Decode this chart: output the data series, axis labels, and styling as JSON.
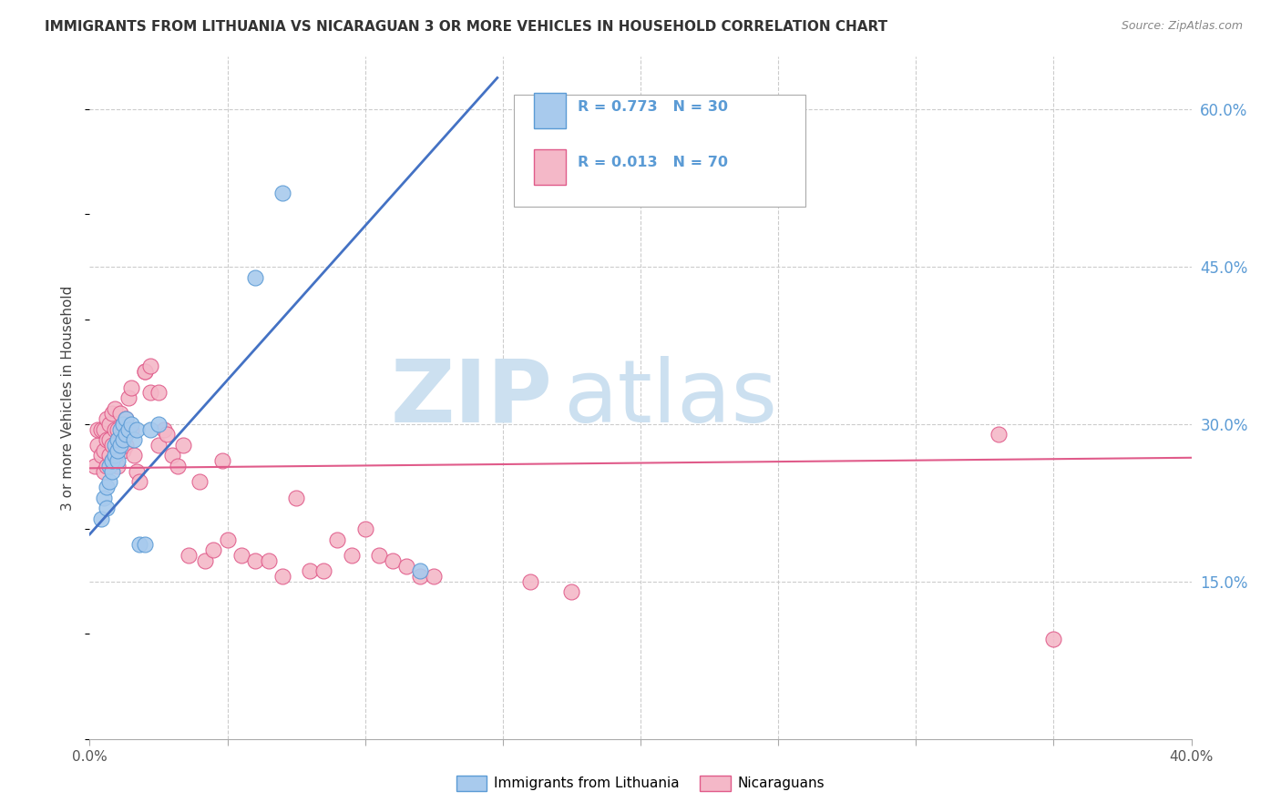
{
  "title": "IMMIGRANTS FROM LITHUANIA VS NICARAGUAN 3 OR MORE VEHICLES IN HOUSEHOLD CORRELATION CHART",
  "source": "Source: ZipAtlas.com",
  "ylabel": "3 or more Vehicles in Household",
  "xlim": [
    0.0,
    0.4
  ],
  "ylim": [
    0.0,
    0.65
  ],
  "xticks": [
    0.0,
    0.05,
    0.1,
    0.15,
    0.2,
    0.25,
    0.3,
    0.35,
    0.4
  ],
  "xticklabels": [
    "0.0%",
    "",
    "",
    "",
    "",
    "",
    "",
    "",
    "40.0%"
  ],
  "ytick_pos": [
    0.0,
    0.15,
    0.3,
    0.45,
    0.6
  ],
  "ytick_labels": [
    "",
    "15.0%",
    "30.0%",
    "45.0%",
    "60.0%"
  ],
  "color_blue_fill": "#a8caed",
  "color_blue_edge": "#5b9bd5",
  "color_pink_fill": "#f4b8c8",
  "color_pink_edge": "#e05b8a",
  "line_blue": "#4472c4",
  "line_pink": "#e05b8a",
  "watermark_zip": "ZIP",
  "watermark_atlas": "atlas",
  "watermark_color": "#cce0f0",
  "legend_R1": "R = 0.773",
  "legend_N1": "N = 30",
  "legend_R2": "R = 0.013",
  "legend_N2": "N = 70",
  "legend_label1": "Immigrants from Lithuania",
  "legend_label2": "Nicaraguans",
  "scatter1_x": [
    0.004,
    0.005,
    0.006,
    0.006,
    0.007,
    0.007,
    0.008,
    0.008,
    0.009,
    0.009,
    0.01,
    0.01,
    0.01,
    0.011,
    0.011,
    0.012,
    0.012,
    0.013,
    0.013,
    0.014,
    0.015,
    0.016,
    0.017,
    0.018,
    0.02,
    0.022,
    0.025,
    0.06,
    0.07,
    0.12
  ],
  "scatter1_y": [
    0.21,
    0.23,
    0.22,
    0.24,
    0.245,
    0.26,
    0.255,
    0.265,
    0.27,
    0.28,
    0.265,
    0.275,
    0.285,
    0.28,
    0.295,
    0.285,
    0.3,
    0.29,
    0.305,
    0.295,
    0.3,
    0.285,
    0.295,
    0.185,
    0.185,
    0.295,
    0.3,
    0.44,
    0.52,
    0.16
  ],
  "scatter2_x": [
    0.002,
    0.003,
    0.003,
    0.004,
    0.004,
    0.005,
    0.005,
    0.005,
    0.006,
    0.006,
    0.006,
    0.007,
    0.007,
    0.007,
    0.008,
    0.008,
    0.008,
    0.009,
    0.009,
    0.01,
    0.01,
    0.01,
    0.011,
    0.011,
    0.012,
    0.012,
    0.013,
    0.013,
    0.014,
    0.015,
    0.015,
    0.016,
    0.017,
    0.018,
    0.02,
    0.02,
    0.022,
    0.022,
    0.025,
    0.025,
    0.027,
    0.028,
    0.03,
    0.032,
    0.034,
    0.036,
    0.04,
    0.042,
    0.045,
    0.048,
    0.05,
    0.055,
    0.06,
    0.065,
    0.07,
    0.075,
    0.08,
    0.085,
    0.09,
    0.095,
    0.1,
    0.105,
    0.11,
    0.115,
    0.12,
    0.125,
    0.16,
    0.175,
    0.33,
    0.35
  ],
  "scatter2_y": [
    0.26,
    0.28,
    0.295,
    0.27,
    0.295,
    0.275,
    0.255,
    0.295,
    0.26,
    0.285,
    0.305,
    0.27,
    0.285,
    0.3,
    0.265,
    0.28,
    0.31,
    0.295,
    0.315,
    0.275,
    0.295,
    0.26,
    0.28,
    0.31,
    0.295,
    0.275,
    0.305,
    0.28,
    0.325,
    0.295,
    0.335,
    0.27,
    0.255,
    0.245,
    0.35,
    0.35,
    0.33,
    0.355,
    0.33,
    0.28,
    0.295,
    0.29,
    0.27,
    0.26,
    0.28,
    0.175,
    0.245,
    0.17,
    0.18,
    0.265,
    0.19,
    0.175,
    0.17,
    0.17,
    0.155,
    0.23,
    0.16,
    0.16,
    0.19,
    0.175,
    0.2,
    0.175,
    0.17,
    0.165,
    0.155,
    0.155,
    0.15,
    0.14,
    0.29,
    0.095
  ],
  "trendline1_x": [
    0.0,
    0.148
  ],
  "trendline1_y": [
    0.195,
    0.63
  ],
  "trendline2_x": [
    0.0,
    0.4
  ],
  "trendline2_y": [
    0.258,
    0.268
  ],
  "background_color": "#ffffff",
  "grid_color": "#cccccc"
}
